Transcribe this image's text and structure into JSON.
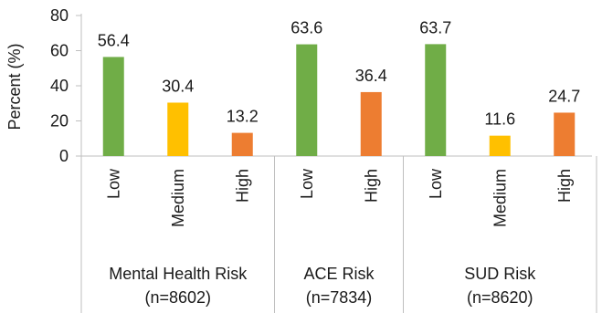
{
  "chart_data": {
    "type": "bar",
    "ylabel": "Percent (%)",
    "ylim": [
      0,
      80
    ],
    "yticks": [
      0,
      20,
      40,
      60,
      80
    ],
    "grid": false,
    "legend": "none",
    "groups": [
      {
        "name": "Mental Health Risk",
        "n": "(n=8602)",
        "bars": [
          {
            "category": "Low",
            "value": 56.4,
            "label": "56.4",
            "color": "#70AD47"
          },
          {
            "category": "Medium",
            "value": 30.4,
            "label": "30.4",
            "color": "#FFC000"
          },
          {
            "category": "High",
            "value": 13.2,
            "label": "13.2",
            "color": "#ED7D31"
          }
        ]
      },
      {
        "name": "ACE Risk",
        "n": "(n=7834)",
        "bars": [
          {
            "category": "Low",
            "value": 63.6,
            "label": "63.6",
            "color": "#70AD47"
          },
          {
            "category": "High",
            "value": 36.4,
            "label": "36.4",
            "color": "#ED7D31"
          }
        ]
      },
      {
        "name": "SUD Risk",
        "n": "(n=8620)",
        "bars": [
          {
            "category": "Low",
            "value": 63.7,
            "label": "63.7",
            "color": "#70AD47"
          },
          {
            "category": "Medium",
            "value": 11.6,
            "label": "11.6",
            "color": "#FFC000"
          },
          {
            "category": "High",
            "value": 24.7,
            "label": "24.7",
            "color": "#ED7D31"
          }
        ]
      }
    ]
  }
}
